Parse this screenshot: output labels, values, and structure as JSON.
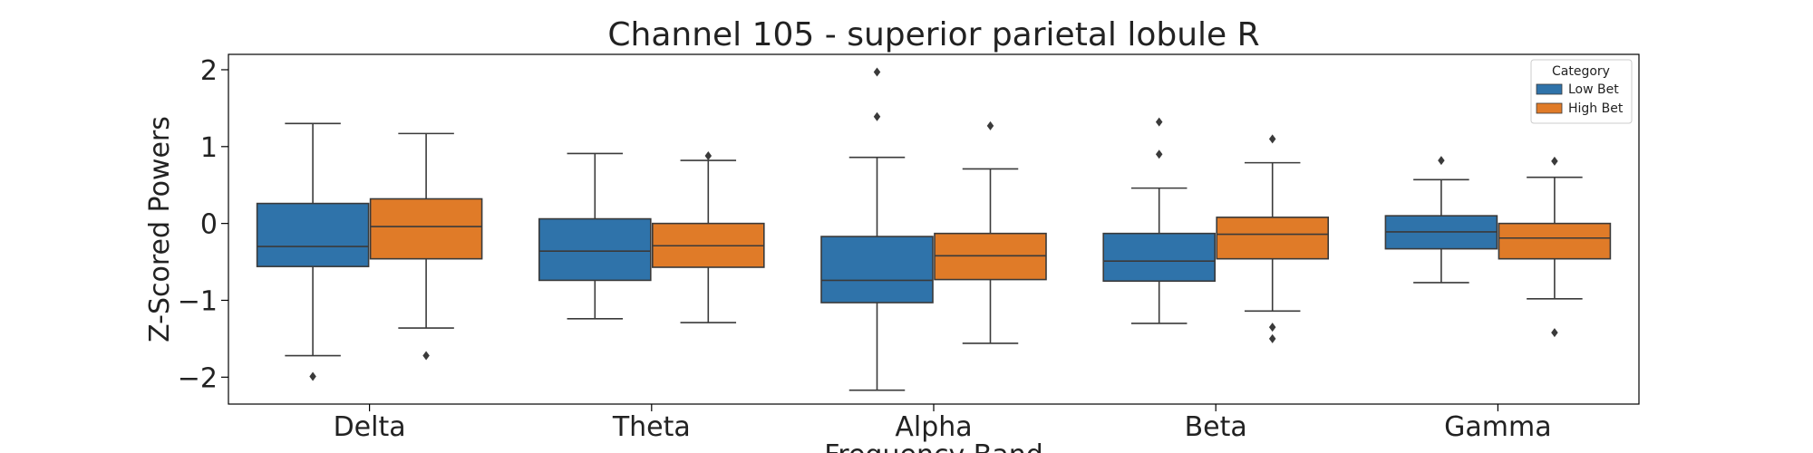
{
  "chart_data": {
    "type": "box",
    "title": "Channel 105 - superior parietal lobule R",
    "xlabel": "Frequency Band",
    "ylabel": "Z-Scored Powers",
    "ylim": [
      -2.35,
      2.2
    ],
    "yticks": [
      2,
      1,
      0,
      -1,
      -2
    ],
    "ytick_labels": [
      "2",
      "1",
      "0",
      "−1",
      "−2"
    ],
    "categories": [
      "Delta",
      "Theta",
      "Alpha",
      "Beta",
      "Gamma"
    ],
    "grid": false,
    "legend": {
      "title": "Category",
      "position": "top-right"
    },
    "series": [
      {
        "name": "Low Bet",
        "color": "#2f73aa",
        "boxes": [
          {
            "whislo": -1.72,
            "q1": -0.56,
            "med": -0.3,
            "q3": 0.26,
            "whishi": 1.3,
            "fliers": [
              -1.99
            ]
          },
          {
            "whislo": -1.24,
            "q1": -0.74,
            "med": -0.36,
            "q3": 0.06,
            "whishi": 0.91,
            "fliers": []
          },
          {
            "whislo": -2.17,
            "q1": -1.03,
            "med": -0.74,
            "q3": -0.17,
            "whishi": 0.86,
            "fliers": [
              1.97,
              1.39
            ]
          },
          {
            "whislo": -1.3,
            "q1": -0.75,
            "med": -0.49,
            "q3": -0.13,
            "whishi": 0.46,
            "fliers": [
              1.32,
              0.9
            ]
          },
          {
            "whislo": -0.77,
            "q1": -0.33,
            "med": -0.11,
            "q3": 0.1,
            "whishi": 0.57,
            "fliers": [
              0.82
            ]
          }
        ]
      },
      {
        "name": "High Bet",
        "color": "#e07b28",
        "boxes": [
          {
            "whislo": -1.36,
            "q1": -0.46,
            "med": -0.04,
            "q3": 0.32,
            "whishi": 1.17,
            "fliers": [
              -1.72
            ]
          },
          {
            "whislo": -1.29,
            "q1": -0.57,
            "med": -0.29,
            "q3": 0.0,
            "whishi": 0.82,
            "fliers": [
              0.88
            ]
          },
          {
            "whislo": -1.56,
            "q1": -0.73,
            "med": -0.42,
            "q3": -0.13,
            "whishi": 0.71,
            "fliers": [
              1.27
            ]
          },
          {
            "whislo": -1.14,
            "q1": -0.46,
            "med": -0.14,
            "q3": 0.08,
            "whishi": 0.79,
            "fliers": [
              1.1,
              -1.35,
              -1.5
            ]
          },
          {
            "whislo": -0.98,
            "q1": -0.46,
            "med": -0.19,
            "q3": 0.0,
            "whishi": 0.6,
            "fliers": [
              0.81,
              -1.42
            ]
          }
        ]
      }
    ]
  }
}
